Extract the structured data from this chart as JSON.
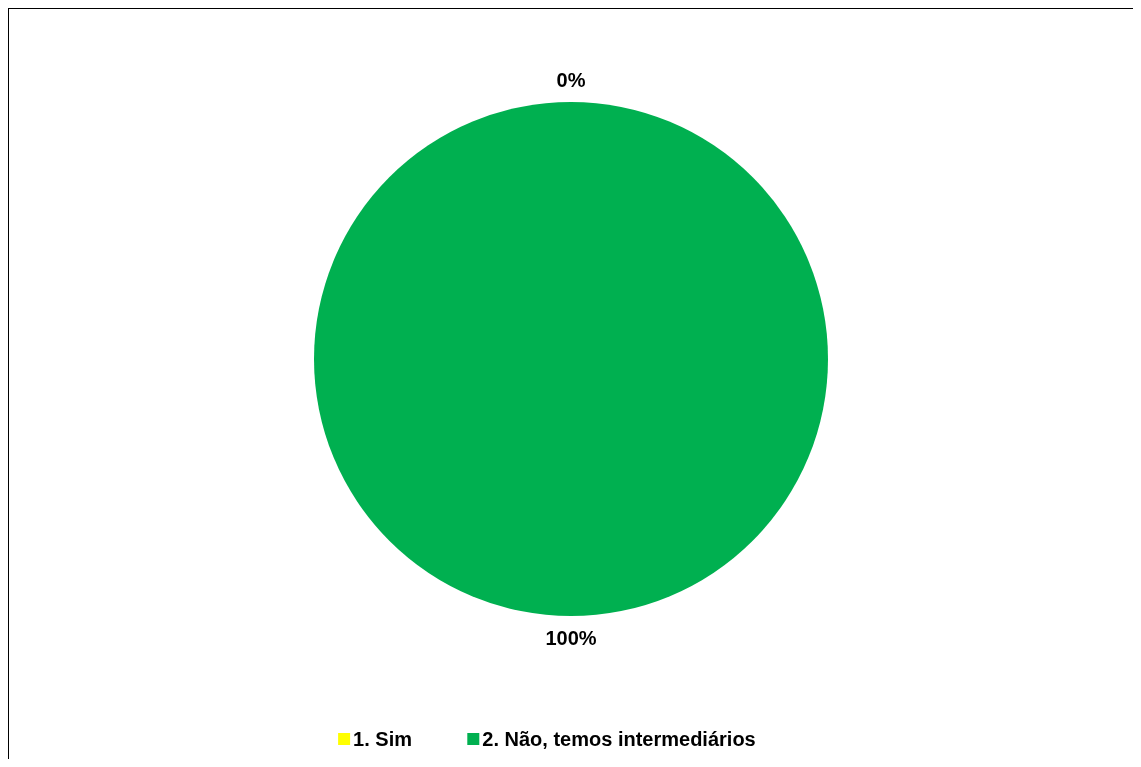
{
  "chart_data": {
    "type": "pie",
    "categories": [
      "1. Sim",
      "2. Não, temos intermediários"
    ],
    "values": [
      0,
      100
    ],
    "colors": [
      "#ffff00",
      "#00b050"
    ],
    "value_labels": [
      "0%",
      "100%"
    ],
    "legend": "bottom"
  }
}
